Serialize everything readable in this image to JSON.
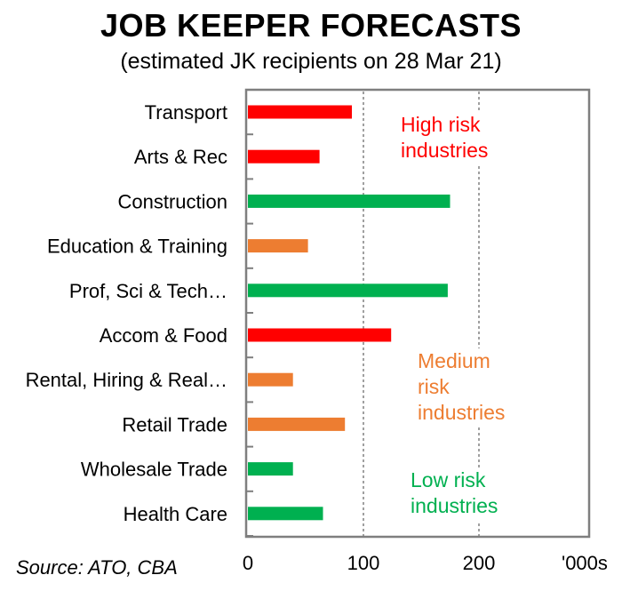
{
  "chart_data": {
    "type": "bar",
    "orientation": "horizontal",
    "title": "JOB KEEPER FORECASTS",
    "subtitle": "(estimated JK recipients on 28 Mar 21)",
    "source": "Source: ATO, CBA",
    "xlabel": "'000s",
    "ylabel": "",
    "xlim": [
      0,
      300
    ],
    "xticks": [
      0,
      100,
      200
    ],
    "xtick_labels": [
      "0",
      "100",
      "200"
    ],
    "grid": "dashed verticals at 100 and 200",
    "categories": [
      "Transport",
      "Arts & Rec",
      "Construction",
      "Education & Training",
      "Prof, Sci & Tech…",
      "Accom & Food",
      "Rental, Hiring & Real…",
      "Retail Trade",
      "Wholesale Trade",
      "Health Care"
    ],
    "values": [
      90,
      62,
      175,
      52,
      173,
      124,
      39,
      84,
      39,
      65
    ],
    "risk": [
      "high",
      "high",
      "low",
      "medium",
      "low",
      "high",
      "medium",
      "medium",
      "low",
      "low"
    ],
    "colors": {
      "high": "#ff0000",
      "medium": "#ed7d31",
      "low": "#00b050"
    },
    "annotations": [
      {
        "risk": "high",
        "lines": [
          "High risk",
          "industries"
        ]
      },
      {
        "risk": "medium",
        "lines": [
          "Medium",
          "risk",
          "industries"
        ]
      },
      {
        "risk": "low",
        "lines": [
          "Low risk",
          "industries"
        ]
      }
    ]
  }
}
